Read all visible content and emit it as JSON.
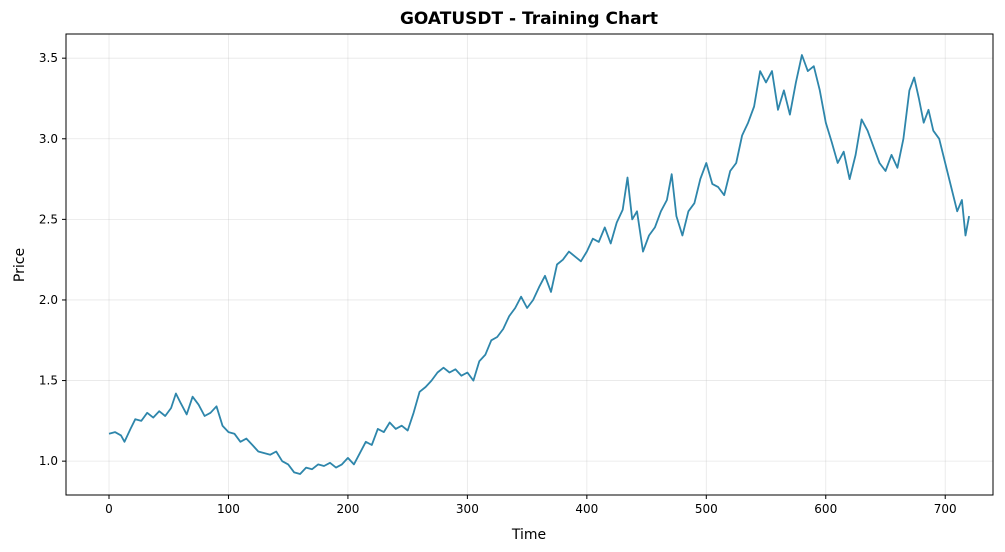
{
  "chart_data": {
    "type": "line",
    "title": "GOATUSDT - Training Chart",
    "xlabel": "Time",
    "ylabel": "Price",
    "xlim": [
      -36,
      740
    ],
    "ylim": [
      0.79,
      3.65
    ],
    "x_ticks": [
      0,
      100,
      200,
      300,
      400,
      500,
      600,
      700
    ],
    "y_ticks": [
      1.0,
      1.5,
      2.0,
      2.5,
      3.0,
      3.5
    ],
    "x_tick_labels": [
      "0",
      "100",
      "200",
      "300",
      "400",
      "500",
      "600",
      "700"
    ],
    "y_tick_labels": [
      "1.0",
      "1.5",
      "2.0",
      "2.5",
      "3.0",
      "3.5"
    ],
    "grid": true,
    "line_color": "#2e86ab",
    "series": [
      {
        "x": [
          0,
          5,
          10,
          13,
          18,
          22,
          27,
          32,
          37,
          42,
          47,
          52,
          56,
          60,
          65,
          70,
          75,
          80,
          85,
          90,
          95,
          100,
          105,
          110,
          115,
          120,
          125,
          130,
          135,
          140,
          145,
          150,
          155,
          160,
          165,
          170,
          175,
          180,
          185,
          190,
          195,
          200,
          205,
          210,
          215,
          220,
          225,
          230,
          235,
          240,
          245,
          250,
          255,
          260,
          265,
          270,
          275,
          280,
          285,
          290,
          295,
          300,
          305,
          310,
          315,
          320,
          325,
          330,
          335,
          340,
          345,
          350,
          355,
          360,
          365,
          370,
          375,
          380,
          385,
          390,
          395,
          400,
          405,
          410,
          415,
          420,
          425,
          430,
          434,
          438,
          442,
          447,
          452,
          457,
          462,
          467,
          471,
          475,
          480,
          485,
          490,
          495,
          500,
          505,
          510,
          515,
          520,
          525,
          530,
          535,
          540,
          545,
          550,
          555,
          560,
          565,
          570,
          575,
          580,
          585,
          590,
          595,
          600,
          605,
          610,
          615,
          620,
          625,
          630,
          635,
          640,
          645,
          650,
          655,
          660,
          665,
          670,
          674,
          678,
          682,
          686,
          690,
          695,
          700,
          705,
          710,
          714,
          717,
          720
        ],
        "values": [
          1.17,
          1.18,
          1.16,
          1.12,
          1.2,
          1.26,
          1.25,
          1.3,
          1.27,
          1.31,
          1.28,
          1.33,
          1.42,
          1.36,
          1.29,
          1.4,
          1.35,
          1.28,
          1.3,
          1.34,
          1.22,
          1.18,
          1.17,
          1.12,
          1.14,
          1.1,
          1.06,
          1.05,
          1.04,
          1.06,
          1.0,
          0.98,
          0.93,
          0.92,
          0.96,
          0.95,
          0.98,
          0.97,
          0.99,
          0.96,
          0.98,
          1.02,
          0.98,
          1.05,
          1.12,
          1.1,
          1.2,
          1.18,
          1.24,
          1.2,
          1.22,
          1.19,
          1.3,
          1.43,
          1.46,
          1.5,
          1.55,
          1.58,
          1.55,
          1.57,
          1.53,
          1.55,
          1.5,
          1.62,
          1.66,
          1.75,
          1.77,
          1.82,
          1.9,
          1.95,
          2.02,
          1.95,
          2.0,
          2.08,
          2.15,
          2.05,
          2.22,
          2.25,
          2.3,
          2.27,
          2.24,
          2.3,
          2.38,
          2.36,
          2.45,
          2.35,
          2.48,
          2.56,
          2.76,
          2.5,
          2.55,
          2.3,
          2.4,
          2.45,
          2.55,
          2.62,
          2.78,
          2.52,
          2.4,
          2.55,
          2.6,
          2.75,
          2.85,
          2.72,
          2.7,
          2.65,
          2.8,
          2.85,
          3.02,
          3.1,
          3.2,
          3.42,
          3.35,
          3.42,
          3.18,
          3.3,
          3.15,
          3.35,
          3.52,
          3.42,
          3.45,
          3.3,
          3.1,
          2.98,
          2.85,
          2.92,
          2.75,
          2.9,
          3.12,
          3.05,
          2.95,
          2.85,
          2.8,
          2.9,
          2.82,
          3.0,
          3.3,
          3.38,
          3.25,
          3.1,
          3.18,
          3.05,
          3.0,
          2.85,
          2.7,
          2.55,
          2.62,
          2.4,
          2.52
        ]
      }
    ]
  }
}
